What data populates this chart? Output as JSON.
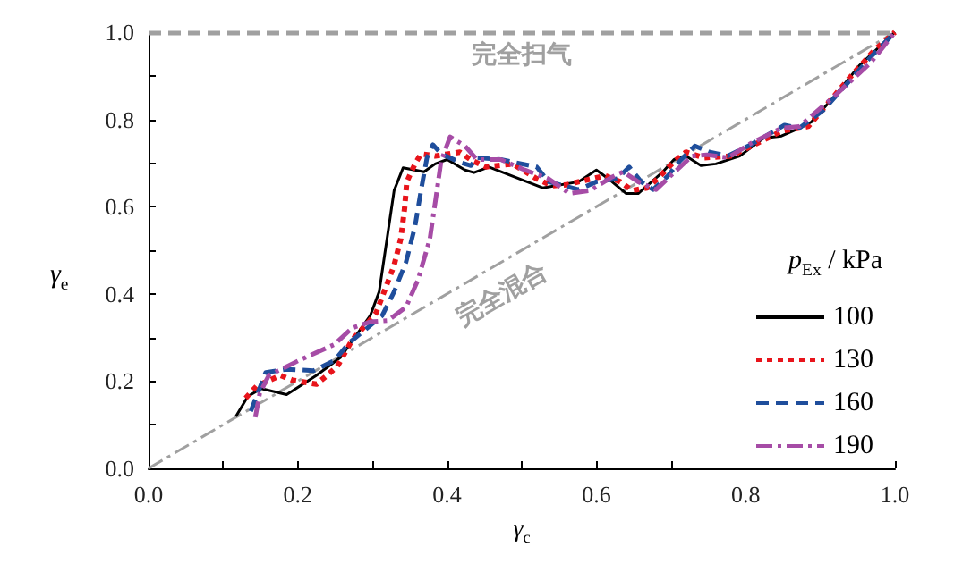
{
  "chart_data": {
    "type": "line",
    "xlabel": "γ$_{c}$",
    "ylabel": "γ$_{e}$",
    "legend_title": "p$_{Ex}$ / kPa",
    "legend": "right",
    "marker": "none",
    "grid": false,
    "xlim": [
      0,
      1
    ],
    "ylim": [
      0,
      1
    ],
    "xticks": [
      {
        "value": 0,
        "label": "0.0"
      },
      {
        "value": 0.1,
        "label": null
      },
      0.2,
      {
        "value": 0.3,
        "label": null
      },
      0.4,
      {
        "value": 0.5,
        "label": null
      },
      0.6,
      {
        "value": 0.7,
        "label": null
      },
      0.8,
      {
        "value": 0.9,
        "label": null
      },
      {
        "value": 1,
        "label": "1.0"
      }
    ],
    "yticks": [
      {
        "value": 0,
        "label": "0.0"
      },
      {
        "value": 0.1,
        "label": null
      },
      0.2,
      {
        "value": 0.3,
        "label": null
      },
      0.4,
      {
        "value": 0.5,
        "label": null
      },
      0.6,
      {
        "value": 0.7,
        "label": null
      },
      0.8,
      {
        "value": 0.9,
        "label": null
      },
      {
        "value": 1,
        "label": "1.0"
      }
    ],
    "ref_lines": [
      {
        "axis": "y",
        "value": 1,
        "label": "完全扫气",
        "color": "#a0a0a0",
        "line_style": "dashed"
      }
    ],
    "annotations": [
      {
        "text": "完全混合",
        "x": 0.5,
        "y": 0.5
      }
    ],
    "series": [
      {
        "type": "line",
        "color": "#a0a0a0",
        "line_style": "dashdot",
        "x": [
          0,
          1
        ],
        "values": [
          0,
          1
        ]
      },
      {
        "name": "100",
        "color": "#000000",
        "line_style": "solid",
        "x": [
          0.117,
          0.133,
          0.151,
          0.185,
          0.225,
          0.257,
          0.297,
          0.309,
          0.329,
          0.341,
          0.369,
          0.384,
          0.4,
          0.424,
          0.436,
          0.456,
          0.528,
          0.576,
          0.6,
          0.616,
          0.64,
          0.656,
          0.688,
          0.704,
          0.72,
          0.74,
          0.76,
          0.792,
          0.824,
          0.848,
          0.872,
          0.888,
          0.92,
          0.952,
          1.0
        ],
        "values": [
          0.119,
          0.165,
          0.183,
          0.169,
          0.213,
          0.254,
          0.35,
          0.405,
          0.637,
          0.689,
          0.68,
          0.698,
          0.708,
          0.684,
          0.678,
          0.691,
          0.643,
          0.657,
          0.684,
          0.664,
          0.63,
          0.63,
          0.678,
          0.708,
          0.716,
          0.694,
          0.698,
          0.716,
          0.757,
          0.762,
          0.78,
          0.794,
          0.855,
          0.923,
          1.0
        ]
      },
      {
        "name": "130",
        "color": "#e8141b",
        "line_style": "dotted",
        "x": [
          0.13,
          0.145,
          0.177,
          0.193,
          0.225,
          0.237,
          0.253,
          0.273,
          0.295,
          0.305,
          0.317,
          0.329,
          0.338,
          0.343,
          0.346,
          0.357,
          0.365,
          0.384,
          0.417,
          0.434,
          0.452,
          0.488,
          0.52,
          0.54,
          0.56,
          0.576,
          0.612,
          0.632,
          0.648,
          0.668,
          0.682,
          0.704,
          0.72,
          0.744,
          0.78,
          0.808,
          0.848,
          0.884,
          0.936,
          0.972,
          1.0
        ],
        "values": [
          0.161,
          0.189,
          0.213,
          0.202,
          0.193,
          0.21,
          0.234,
          0.295,
          0.336,
          0.357,
          0.411,
          0.466,
          0.527,
          0.596,
          0.657,
          0.698,
          0.721,
          0.716,
          0.725,
          0.705,
          0.691,
          0.698,
          0.664,
          0.648,
          0.65,
          0.657,
          0.671,
          0.657,
          0.637,
          0.643,
          0.664,
          0.703,
          0.725,
          0.712,
          0.716,
          0.739,
          0.773,
          0.784,
          0.889,
          0.958,
          1.0
        ]
      },
      {
        "name": "160",
        "color": "#1f4e9c",
        "line_style": "dashed",
        "x": [
          0.137,
          0.157,
          0.185,
          0.221,
          0.249,
          0.269,
          0.289,
          0.313,
          0.329,
          0.345,
          0.357,
          0.365,
          0.373,
          0.381,
          0.392,
          0.417,
          0.432,
          0.44,
          0.472,
          0.52,
          0.536,
          0.576,
          0.6,
          0.628,
          0.644,
          0.66,
          0.676,
          0.696,
          0.712,
          0.732,
          0.752,
          0.776,
          0.808,
          0.852,
          0.872,
          0.904,
          0.968,
          1.0
        ],
        "values": [
          0.131,
          0.22,
          0.227,
          0.224,
          0.247,
          0.288,
          0.316,
          0.35,
          0.405,
          0.473,
          0.555,
          0.637,
          0.712,
          0.742,
          0.721,
          0.702,
          0.694,
          0.712,
          0.708,
          0.691,
          0.657,
          0.639,
          0.657,
          0.664,
          0.691,
          0.657,
          0.639,
          0.671,
          0.705,
          0.739,
          0.725,
          0.716,
          0.743,
          0.787,
          0.78,
          0.821,
          0.944,
          1.0
        ]
      },
      {
        "name": "190",
        "color": "#a64ca6",
        "line_style": "dashdot",
        "x": [
          0.143,
          0.149,
          0.161,
          0.201,
          0.249,
          0.273,
          0.297,
          0.321,
          0.345,
          0.361,
          0.377,
          0.384,
          0.392,
          0.404,
          0.424,
          0.44,
          0.472,
          0.504,
          0.536,
          0.564,
          0.592,
          0.62,
          0.636,
          0.656,
          0.68,
          0.704,
          0.728,
          0.748,
          0.776,
          0.808,
          0.848,
          0.872,
          0.92,
          0.968,
          1.0
        ],
        "values": [
          0.117,
          0.172,
          0.213,
          0.247,
          0.284,
          0.322,
          0.336,
          0.339,
          0.37,
          0.432,
          0.527,
          0.609,
          0.705,
          0.76,
          0.739,
          0.708,
          0.708,
          0.684,
          0.664,
          0.63,
          0.637,
          0.667,
          0.68,
          0.657,
          0.639,
          0.678,
          0.716,
          0.719,
          0.712,
          0.746,
          0.78,
          0.784,
          0.855,
          0.931,
          1.0
        ]
      }
    ]
  }
}
